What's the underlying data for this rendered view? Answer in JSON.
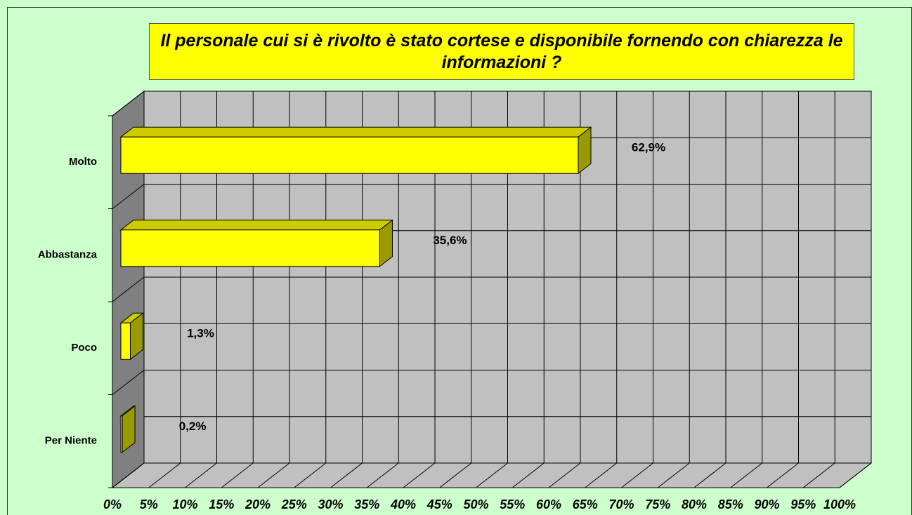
{
  "chart_data": {
    "type": "bar3d_horizontal",
    "title": "Il personale cui si è rivolto è stato cortese e disponibile fornendo con chiarezza le informazioni ?",
    "categories": [
      "Molto",
      "Abbastanza",
      "Poco",
      "Per Niente"
    ],
    "values": [
      62.9,
      35.6,
      1.3,
      0.2
    ],
    "value_labels": [
      "62,9%",
      "35,6%",
      "1,3%",
      "0,2%"
    ],
    "color": "#ffff00",
    "xlim": [
      0,
      100
    ],
    "xticks": [
      {
        "value": 0,
        "label": "0%"
      },
      {
        "value": 5,
        "label": "5%"
      },
      {
        "value": 10,
        "label": "10%"
      },
      {
        "value": 15,
        "label": "15%"
      },
      {
        "value": 20,
        "label": "20%"
      },
      {
        "value": 25,
        "label": "25%"
      },
      {
        "value": 30,
        "label": "30%"
      },
      {
        "value": 35,
        "label": "35%"
      },
      {
        "value": 40,
        "label": "40%"
      },
      {
        "value": 45,
        "label": "45%"
      },
      {
        "value": 50,
        "label": "50%"
      },
      {
        "value": 55,
        "label": "55%"
      },
      {
        "value": 60,
        "label": "60%"
      },
      {
        "value": 65,
        "label": "65%"
      },
      {
        "value": 70,
        "label": "70%"
      },
      {
        "value": 75,
        "label": "75%"
      },
      {
        "value": 80,
        "label": "80%"
      },
      {
        "value": 85,
        "label": "85%"
      },
      {
        "value": 90,
        "label": "90%"
      },
      {
        "value": 95,
        "label": "95%"
      },
      {
        "value": 100,
        "label": "100%"
      }
    ],
    "grid": true
  }
}
